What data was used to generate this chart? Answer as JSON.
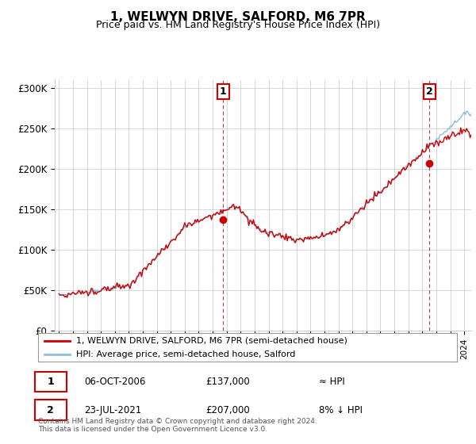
{
  "title": "1, WELWYN DRIVE, SALFORD, M6 7PR",
  "subtitle": "Price paid vs. HM Land Registry's House Price Index (HPI)",
  "ylim": [
    0,
    310000
  ],
  "yticks": [
    0,
    50000,
    100000,
    150000,
    200000,
    250000,
    300000
  ],
  "ytick_labels": [
    "£0",
    "£50K",
    "£100K",
    "£150K",
    "£200K",
    "£250K",
    "£300K"
  ],
  "hpi_color": "#8bbcdc",
  "price_color": "#cc0000",
  "marker_color": "#cc0000",
  "background_color": "#ffffff",
  "grid_color": "#d0d0d0",
  "sale1_date": "06-OCT-2006",
  "sale1_price": 137000,
  "sale2_date": "23-JUL-2021",
  "sale2_price": 207000,
  "legend_property": "1, WELWYN DRIVE, SALFORD, M6 7PR (semi-detached house)",
  "legend_hpi": "HPI: Average price, semi-detached house, Salford",
  "footer": "Contains HM Land Registry data © Crown copyright and database right 2024.\nThis data is licensed under the Open Government Licence v3.0.",
  "sale1_note": "≈ HPI",
  "sale2_note": "8% ↓ HPI"
}
